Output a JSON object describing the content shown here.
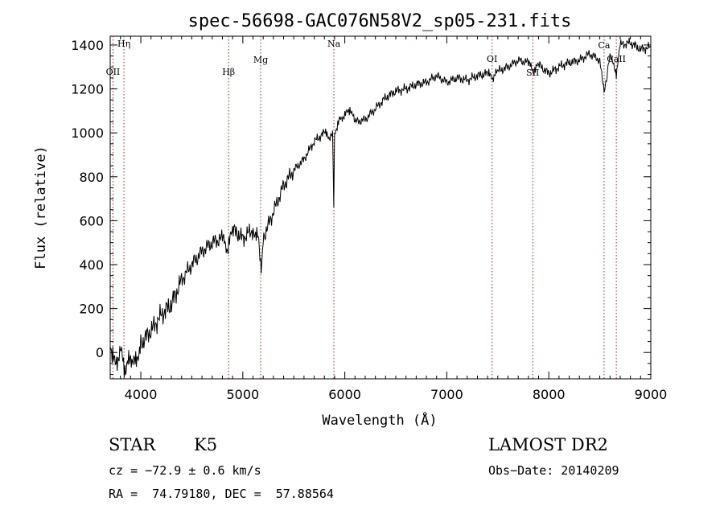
{
  "chart_data": {
    "type": "line",
    "title": "spec-56698-GAC076N58V2_sp05-231.fits",
    "xlabel": "Wavelength (Å)",
    "ylabel": "Flux (relative)",
    "xlim": [
      3700,
      9000
    ],
    "ylim": [
      -120,
      1440
    ],
    "xticks": [
      4000,
      5000,
      6000,
      7000,
      8000,
      9000
    ],
    "yticks": [
      0,
      200,
      400,
      600,
      800,
      1000,
      1200,
      1400
    ],
    "series": [
      {
        "x": [
          3700,
          3750,
          3800,
          3850,
          3900,
          3950,
          4000,
          4100,
          4200,
          4300,
          4400,
          4500,
          4600,
          4700,
          4800,
          4850,
          4900,
          5000,
          5100,
          5150,
          5180,
          5200,
          5300,
          5400,
          5500,
          5600,
          5700,
          5800,
          5850,
          5880,
          5892,
          5900,
          5950,
          6000,
          6050,
          6100,
          6200,
          6300,
          6400,
          6500,
          6600,
          6700,
          6800,
          6900,
          7000,
          7100,
          7200,
          7300,
          7400,
          7450,
          7500,
          7600,
          7700,
          7800,
          7850,
          7900,
          8000,
          8100,
          8200,
          8300,
          8400,
          8500,
          8542,
          8600,
          8662,
          8700,
          8800,
          8900,
          9000
        ],
        "y": [
          40,
          -60,
          10,
          -80,
          -20,
          -50,
          40,
          100,
          170,
          220,
          330,
          400,
          460,
          500,
          520,
          470,
          560,
          520,
          560,
          520,
          360,
          520,
          640,
          760,
          830,
          880,
          960,
          1000,
          980,
          1010,
          660,
          1000,
          1060,
          1080,
          1110,
          1050,
          1060,
          1110,
          1160,
          1190,
          1200,
          1220,
          1230,
          1260,
          1230,
          1250,
          1240,
          1260,
          1270,
          1250,
          1280,
          1300,
          1330,
          1320,
          1280,
          1310,
          1270,
          1300,
          1320,
          1330,
          1360,
          1330,
          1180,
          1350,
          1270,
          1400,
          1410,
          1380,
          1390
        ]
      }
    ],
    "lines": [
      {
        "label": "Hη",
        "x": 3835
      },
      {
        "label": "OII",
        "x": 3727
      },
      {
        "label": "Hβ",
        "x": 4861
      },
      {
        "label": "Mg",
        "x": 5175
      },
      {
        "label": "Na",
        "x": 5893
      },
      {
        "label": "OI",
        "x": 7444
      },
      {
        "label": "SII",
        "x": 7843
      },
      {
        "label": "Ca",
        "x": 8542
      },
      {
        "label": "CaII",
        "x": 8662
      }
    ],
    "grid": false
  },
  "info": {
    "object_class": "STAR",
    "subclass": "K5",
    "survey": "LAMOST DR2",
    "cz": "cz = −72.9 ± 0.6 km/s",
    "obs_date": "Obs−Date: 20140209",
    "coords": "RA =  74.79180, DEC =  57.88564"
  }
}
